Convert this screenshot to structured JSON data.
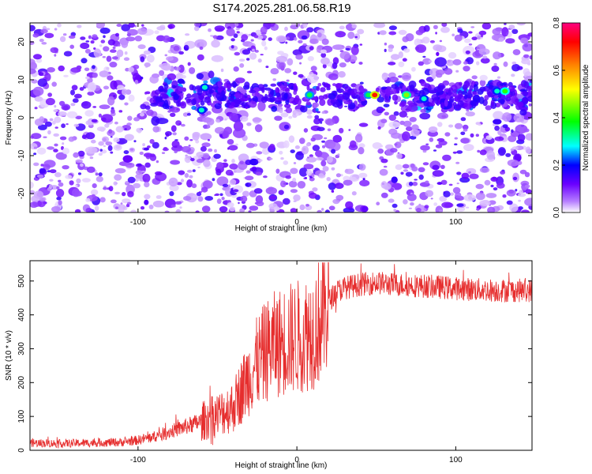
{
  "title": "S174.2025.281.06.58.R19",
  "chart_data": [
    {
      "type": "heatmap",
      "name": "spectrogram",
      "xlabel": "Height of straight line (km)",
      "ylabel": "Frequency (Hz)",
      "xlim": [
        -168,
        148
      ],
      "ylim": [
        -25,
        25
      ],
      "xticks": [
        -100,
        0,
        100
      ],
      "yticks": [
        -20,
        -10,
        0,
        10,
        20
      ],
      "colorbar": {
        "label": "Normalized spectral amplitude",
        "range": [
          0.0,
          0.8
        ],
        "ticks": [
          0.0,
          0.2,
          0.4,
          0.6,
          0.8
        ],
        "tick_labels": [
          "0.0",
          "0.2",
          "0.4",
          "0.6",
          "0.8"
        ],
        "colors": [
          "#ffffff",
          "#8000ff",
          "#0000ff",
          "#00ffff",
          "#00ff00",
          "#ffff00",
          "#ff8000",
          "#ff0000",
          "#ff0080"
        ]
      },
      "signal_band": {
        "frequency_hz": 6,
        "x_range": [
          -90,
          148
        ]
      },
      "gap_x_range": [
        43,
        50
      ],
      "hot_spots": [
        {
          "x": -58,
          "y": 8,
          "value": 0.3
        },
        {
          "x": -60,
          "y": 2,
          "value": 0.3
        },
        {
          "x": 8,
          "y": 6,
          "value": 0.35
        },
        {
          "x": 45,
          "y": 6,
          "value": 0.35
        },
        {
          "x": 49,
          "y": 6,
          "value": 0.7
        },
        {
          "x": 69,
          "y": 6,
          "value": 0.45
        },
        {
          "x": 80,
          "y": 5,
          "value": 0.3
        },
        {
          "x": 126,
          "y": 7,
          "value": 0.3
        },
        {
          "x": 131,
          "y": 7,
          "value": 0.4
        }
      ]
    },
    {
      "type": "line",
      "name": "snr",
      "xlabel": "Height of straight line (km)",
      "ylabel": "SNR (10 * v/v)",
      "xlim": [
        -168,
        148
      ],
      "ylim": [
        0,
        560
      ],
      "xticks": [
        -100,
        0,
        100
      ],
      "yticks": [
        0,
        100,
        200,
        300,
        400,
        500
      ],
      "color": "#e62e2e",
      "series": [
        {
          "name": "SNR",
          "x": [
            -168,
            -150,
            -130,
            -110,
            -100,
            -90,
            -80,
            -70,
            -60,
            -50,
            -40,
            -35,
            -30,
            -25,
            -20,
            -15,
            -10,
            -5,
            0,
            5,
            10,
            15,
            20,
            25,
            30,
            35,
            40,
            50,
            60,
            70,
            80,
            90,
            100,
            110,
            120,
            130,
            140,
            148
          ],
          "y": [
            22,
            20,
            22,
            24,
            30,
            40,
            55,
            70,
            85,
            105,
            130,
            175,
            220,
            260,
            290,
            310,
            320,
            330,
            335,
            345,
            355,
            390,
            440,
            470,
            480,
            485,
            490,
            495,
            490,
            488,
            485,
            482,
            478,
            475,
            473,
            472,
            472,
            472
          ]
        }
      ]
    }
  ]
}
